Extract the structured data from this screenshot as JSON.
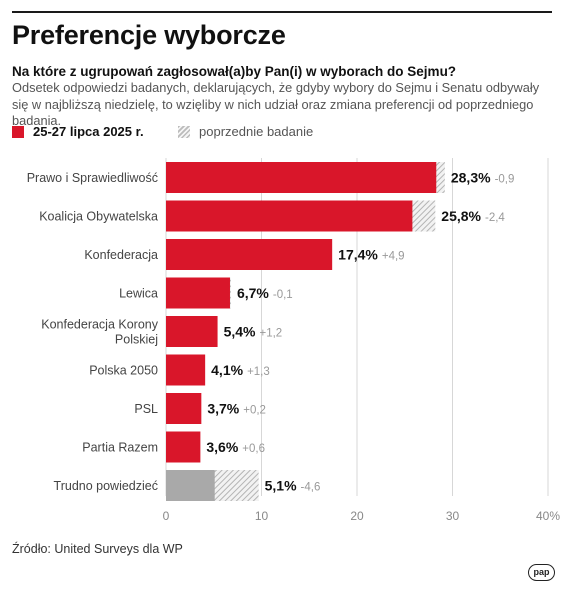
{
  "title": "Preferencje wyborcze",
  "subtitle": "Na które z ugrupowań zagłosował(a)by Pan(i) w wyborach do Sejmu?",
  "description": "Odsetek odpowiedzi badanych, deklarujących, że gdyby wybory do Sejmu i Senatu odbywały się w najbliższą niedzielę, to wzięliby w nich udział oraz zmiana preferencji od poprzedniego badania.",
  "legend": {
    "current": "25-27 lipca 2025 r.",
    "previous": "poprzednie badanie"
  },
  "source": "Źródło: United Surveys dla WP",
  "logo": "pap",
  "colors": {
    "current": "#d9162a",
    "undecided": "#a9a9a9",
    "previous_hatch": "#bbbbbb"
  },
  "chart_data": {
    "type": "bar",
    "orientation": "horizontal",
    "categories": [
      "Prawo i Sprawiedliwość",
      "Koalicja Obywatelska",
      "Konfederacja",
      "Lewica",
      "Konfederacja Korony Polskiej",
      "Polska 2050",
      "PSL",
      "Partia Razem",
      "Trudno powiedzieć"
    ],
    "series": [
      {
        "name": "25-27 lipca 2025 r.",
        "values": [
          28.3,
          25.8,
          17.4,
          6.7,
          5.4,
          4.1,
          3.7,
          3.6,
          5.1
        ]
      },
      {
        "name": "poprzednie badanie",
        "values": [
          29.2,
          28.2,
          12.5,
          6.8,
          4.2,
          2.8,
          3.5,
          3.0,
          9.7
        ]
      }
    ],
    "value_labels": [
      "28,3%",
      "25,8%",
      "17,4%",
      "6,7%",
      "5,4%",
      "4,1%",
      "3,7%",
      "3,6%",
      "5,1%"
    ],
    "change_labels": [
      "-0,9",
      "-2,4",
      "+4,9",
      "-0,1",
      "+1,2",
      "+1,3",
      "+0,2",
      "+0,6",
      "-4,6"
    ],
    "xlim": [
      0,
      40
    ],
    "x_ticks": [
      0,
      10,
      20,
      30,
      40
    ],
    "x_tick_labels": [
      "0",
      "10",
      "20",
      "30",
      "40%"
    ],
    "grid": true
  }
}
